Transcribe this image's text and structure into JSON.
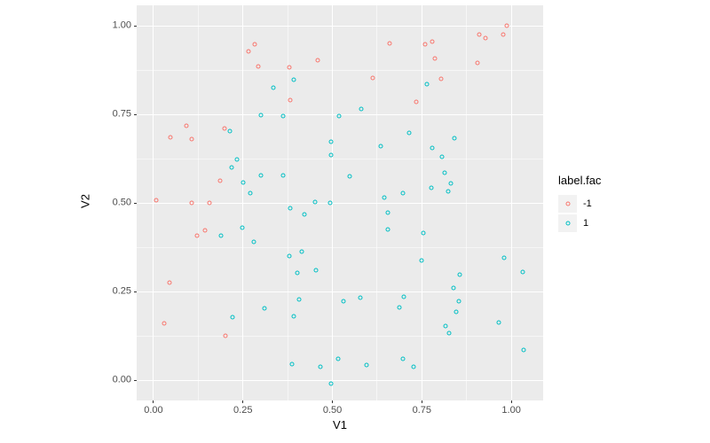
{
  "chart_data": {
    "type": "scatter",
    "title": "",
    "xlabel": "V1",
    "ylabel": "V2",
    "x_ticks": [
      0,
      0.25,
      0.5,
      0.75,
      1
    ],
    "x_tick_labels": [
      "0.00",
      "0.25",
      "0.50",
      "0.75",
      "1.00"
    ],
    "y_ticks": [
      0,
      0.25,
      0.5,
      0.75,
      1
    ],
    "y_tick_labels": [
      "0.00",
      "0.25",
      "0.50",
      "0.75",
      "1.00"
    ],
    "minor_ticks": [
      0.125,
      0.375,
      0.625,
      0.875
    ],
    "x_range": [
      -0.047,
      1.089
    ],
    "y_range": [
      -0.0575,
      1.0575
    ],
    "grid": true,
    "legend_position": "right",
    "panel_bg": "#EBEBEB",
    "grid_color": "#FFFFFF",
    "series": [
      {
        "name": "-1",
        "color": "#F8766D",
        "points": [
          [
            0.265,
            0.928
          ],
          [
            0.283,
            0.947
          ],
          [
            0.292,
            0.885
          ],
          [
            0.379,
            0.882
          ],
          [
            0.46,
            0.903
          ],
          [
            0.659,
            0.951
          ],
          [
            0.613,
            0.853
          ],
          [
            0.381,
            0.789
          ],
          [
            0.093,
            0.718
          ],
          [
            0.048,
            0.684
          ],
          [
            0.106,
            0.681
          ],
          [
            0.199,
            0.71
          ],
          [
            0.187,
            0.563
          ],
          [
            0.008,
            0.507
          ],
          [
            0.107,
            0.5
          ],
          [
            0.157,
            0.5
          ],
          [
            0.987,
            1.0
          ],
          [
            0.911,
            0.975
          ],
          [
            0.929,
            0.966
          ],
          [
            0.977,
            0.975
          ],
          [
            0.758,
            0.948
          ],
          [
            0.778,
            0.954
          ],
          [
            0.787,
            0.907
          ],
          [
            0.905,
            0.896
          ],
          [
            0.803,
            0.849
          ],
          [
            0.735,
            0.784
          ],
          [
            0.144,
            0.423
          ],
          [
            0.121,
            0.407
          ],
          [
            0.044,
            0.276
          ],
          [
            0.029,
            0.16
          ],
          [
            0.2,
            0.125
          ]
        ]
      },
      {
        "name": "1",
        "color": "#00BFC4",
        "points": [
          [
            0.214,
            0.702
          ],
          [
            0.233,
            0.622
          ],
          [
            0.218,
            0.599
          ],
          [
            0.251,
            0.558
          ],
          [
            0.27,
            0.528
          ],
          [
            0.392,
            0.847
          ],
          [
            0.334,
            0.825
          ],
          [
            0.58,
            0.766
          ],
          [
            0.3,
            0.748
          ],
          [
            0.363,
            0.745
          ],
          [
            0.519,
            0.746
          ],
          [
            0.496,
            0.672
          ],
          [
            0.635,
            0.66
          ],
          [
            0.497,
            0.634
          ],
          [
            0.301,
            0.578
          ],
          [
            0.363,
            0.578
          ],
          [
            0.549,
            0.576
          ],
          [
            0.646,
            0.516
          ],
          [
            0.697,
            0.528
          ],
          [
            0.452,
            0.503
          ],
          [
            0.494,
            0.499
          ],
          [
            0.763,
            0.834
          ],
          [
            0.715,
            0.698
          ],
          [
            0.842,
            0.683
          ],
          [
            0.78,
            0.654
          ],
          [
            0.807,
            0.629
          ],
          [
            0.813,
            0.585
          ],
          [
            0.83,
            0.556
          ],
          [
            0.776,
            0.543
          ],
          [
            0.823,
            0.533
          ],
          [
            0.189,
            0.407
          ],
          [
            0.248,
            0.429
          ],
          [
            0.28,
            0.39
          ],
          [
            0.22,
            0.178
          ],
          [
            0.382,
            0.486
          ],
          [
            0.421,
            0.467
          ],
          [
            0.655,
            0.472
          ],
          [
            0.655,
            0.425
          ],
          [
            0.38,
            0.351
          ],
          [
            0.414,
            0.363
          ],
          [
            0.402,
            0.303
          ],
          [
            0.455,
            0.311
          ],
          [
            0.407,
            0.228
          ],
          [
            0.53,
            0.222
          ],
          [
            0.579,
            0.232
          ],
          [
            0.311,
            0.203
          ],
          [
            0.688,
            0.205
          ],
          [
            0.392,
            0.18
          ],
          [
            0.387,
            0.044
          ],
          [
            0.466,
            0.038
          ],
          [
            0.515,
            0.059
          ],
          [
            0.595,
            0.043
          ],
          [
            0.496,
            -0.011
          ],
          [
            0.698,
            0.06
          ],
          [
            0.753,
            0.414
          ],
          [
            0.749,
            0.338
          ],
          [
            0.981,
            0.346
          ],
          [
            1.033,
            0.305
          ],
          [
            0.856,
            0.297
          ],
          [
            0.838,
            0.26
          ],
          [
            0.699,
            0.236
          ],
          [
            0.854,
            0.222
          ],
          [
            0.845,
            0.192
          ],
          [
            0.816,
            0.153
          ],
          [
            0.825,
            0.133
          ],
          [
            0.966,
            0.163
          ],
          [
            1.034,
            0.085
          ],
          [
            0.726,
            0.038
          ]
        ]
      }
    ]
  },
  "legend": {
    "title": "label.fac",
    "key_bg": "#F2F2F2",
    "items": [
      {
        "label": "-1",
        "color": "#F8766D"
      },
      {
        "label": "1",
        "color": "#00BFC4"
      }
    ]
  },
  "axis": {
    "tick_label_color": "#4D4D4D",
    "tick_mark_color": "#333333",
    "title_color": "#000000"
  }
}
